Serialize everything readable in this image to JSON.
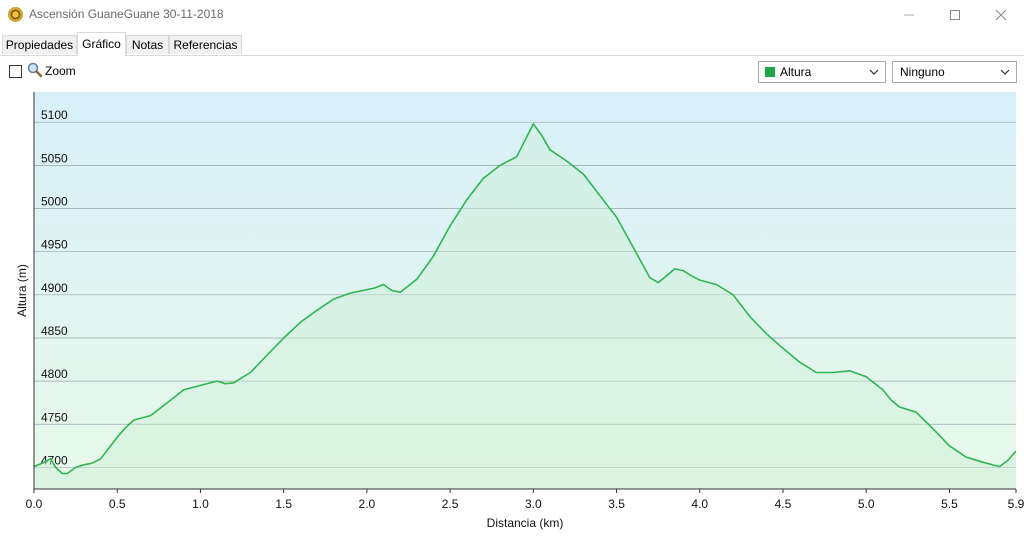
{
  "window": {
    "title": "Ascensión GuaneGuane 30-11-2018"
  },
  "tabs": [
    {
      "label": "Propiedades",
      "active": false
    },
    {
      "label": "Gráfico",
      "active": true
    },
    {
      "label": "Notas",
      "active": false
    },
    {
      "label": "Referencias",
      "active": false
    }
  ],
  "toolbar": {
    "zoom_label": "Zoom",
    "zoom_checked": false,
    "series_select": {
      "value": "Altura",
      "swatch_color": "#1fa842"
    },
    "secondary_select": {
      "value": "Ninguno"
    }
  },
  "chart_data": {
    "type": "area",
    "title": "",
    "xlabel": "Distancia  (km)",
    "ylabel": "Altura (m)",
    "xlim": [
      0,
      5.9
    ],
    "ylim": [
      4675,
      5135
    ],
    "x_ticks": [
      "0.0",
      "0.5",
      "1.0",
      "1.5",
      "2.0",
      "2.5",
      "3.0",
      "3.5",
      "4.0",
      "4.5",
      "5.0",
      "5.5",
      "5.9"
    ],
    "y_ticks": [
      "4700",
      "4750",
      "4800",
      "4850",
      "4900",
      "4950",
      "5000",
      "5050",
      "5100"
    ],
    "grid": true,
    "legend": "none",
    "colors": {
      "line": "#2fb552",
      "fill_bottom": "#e8f8ea",
      "fill_top": "#d7f0f8"
    },
    "series": [
      {
        "name": "Altura",
        "x": [
          0.0,
          0.05,
          0.1,
          0.13,
          0.17,
          0.2,
          0.25,
          0.3,
          0.35,
          0.4,
          0.5,
          0.55,
          0.6,
          0.7,
          0.8,
          0.9,
          1.0,
          1.1,
          1.15,
          1.2,
          1.3,
          1.4,
          1.5,
          1.6,
          1.7,
          1.8,
          1.9,
          2.0,
          2.05,
          2.1,
          2.15,
          2.2,
          2.3,
          2.4,
          2.5,
          2.6,
          2.7,
          2.8,
          2.9,
          3.0,
          3.05,
          3.1,
          3.2,
          3.3,
          3.4,
          3.5,
          3.6,
          3.7,
          3.75,
          3.8,
          3.85,
          3.9,
          3.95,
          4.0,
          4.1,
          4.2,
          4.3,
          4.4,
          4.5,
          4.6,
          4.7,
          4.8,
          4.9,
          5.0,
          5.1,
          5.15,
          5.2,
          5.3,
          5.4,
          5.5,
          5.6,
          5.7,
          5.8,
          5.85,
          5.9
        ],
        "values": [
          4701,
          4705,
          4710,
          4700,
          4693,
          4693,
          4700,
          4703,
          4705,
          4710,
          4735,
          4746,
          4755,
          4760,
          4775,
          4790,
          4795,
          4800,
          4797,
          4798,
          4810,
          4830,
          4850,
          4868,
          4882,
          4895,
          4902,
          4906,
          4908,
          4912,
          4905,
          4903,
          4918,
          4945,
          4980,
          5010,
          5035,
          5050,
          5060,
          5098,
          5085,
          5068,
          5055,
          5040,
          5015,
          4990,
          4955,
          4920,
          4914,
          4922,
          4930,
          4928,
          4922,
          4917,
          4912,
          4900,
          4875,
          4855,
          4838,
          4822,
          4810,
          4810,
          4812,
          4805,
          4790,
          4778,
          4770,
          4764,
          4745,
          4725,
          4712,
          4706,
          4701,
          4708,
          4719
        ]
      }
    ]
  }
}
